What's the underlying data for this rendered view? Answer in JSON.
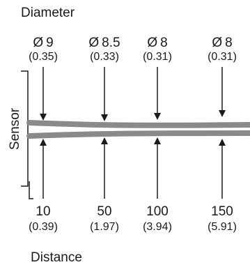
{
  "diagram_title": "Diameter",
  "x_title": "Distance",
  "side_label": "Sensor",
  "colors": {
    "beam": "#8a8a8a",
    "line": "#1a1a1a",
    "text": "#1a1a1a"
  },
  "diameters": [
    {
      "symbol": "Ø",
      "mm": "9",
      "inch": "(0.35)"
    },
    {
      "symbol": "Ø",
      "mm": "8.5",
      "inch": "(0.33)"
    },
    {
      "symbol": "Ø",
      "mm": "8",
      "inch": "(0.31)"
    },
    {
      "symbol": "Ø",
      "mm": "8",
      "inch": "(0.31)"
    }
  ],
  "distances": [
    {
      "mm": "10",
      "inch": "(0.39)"
    },
    {
      "mm": "50",
      "inch": "(1.97)"
    },
    {
      "mm": "100",
      "inch": "(3.94)"
    },
    {
      "mm": "150",
      "inch": "(5.91)"
    }
  ]
}
